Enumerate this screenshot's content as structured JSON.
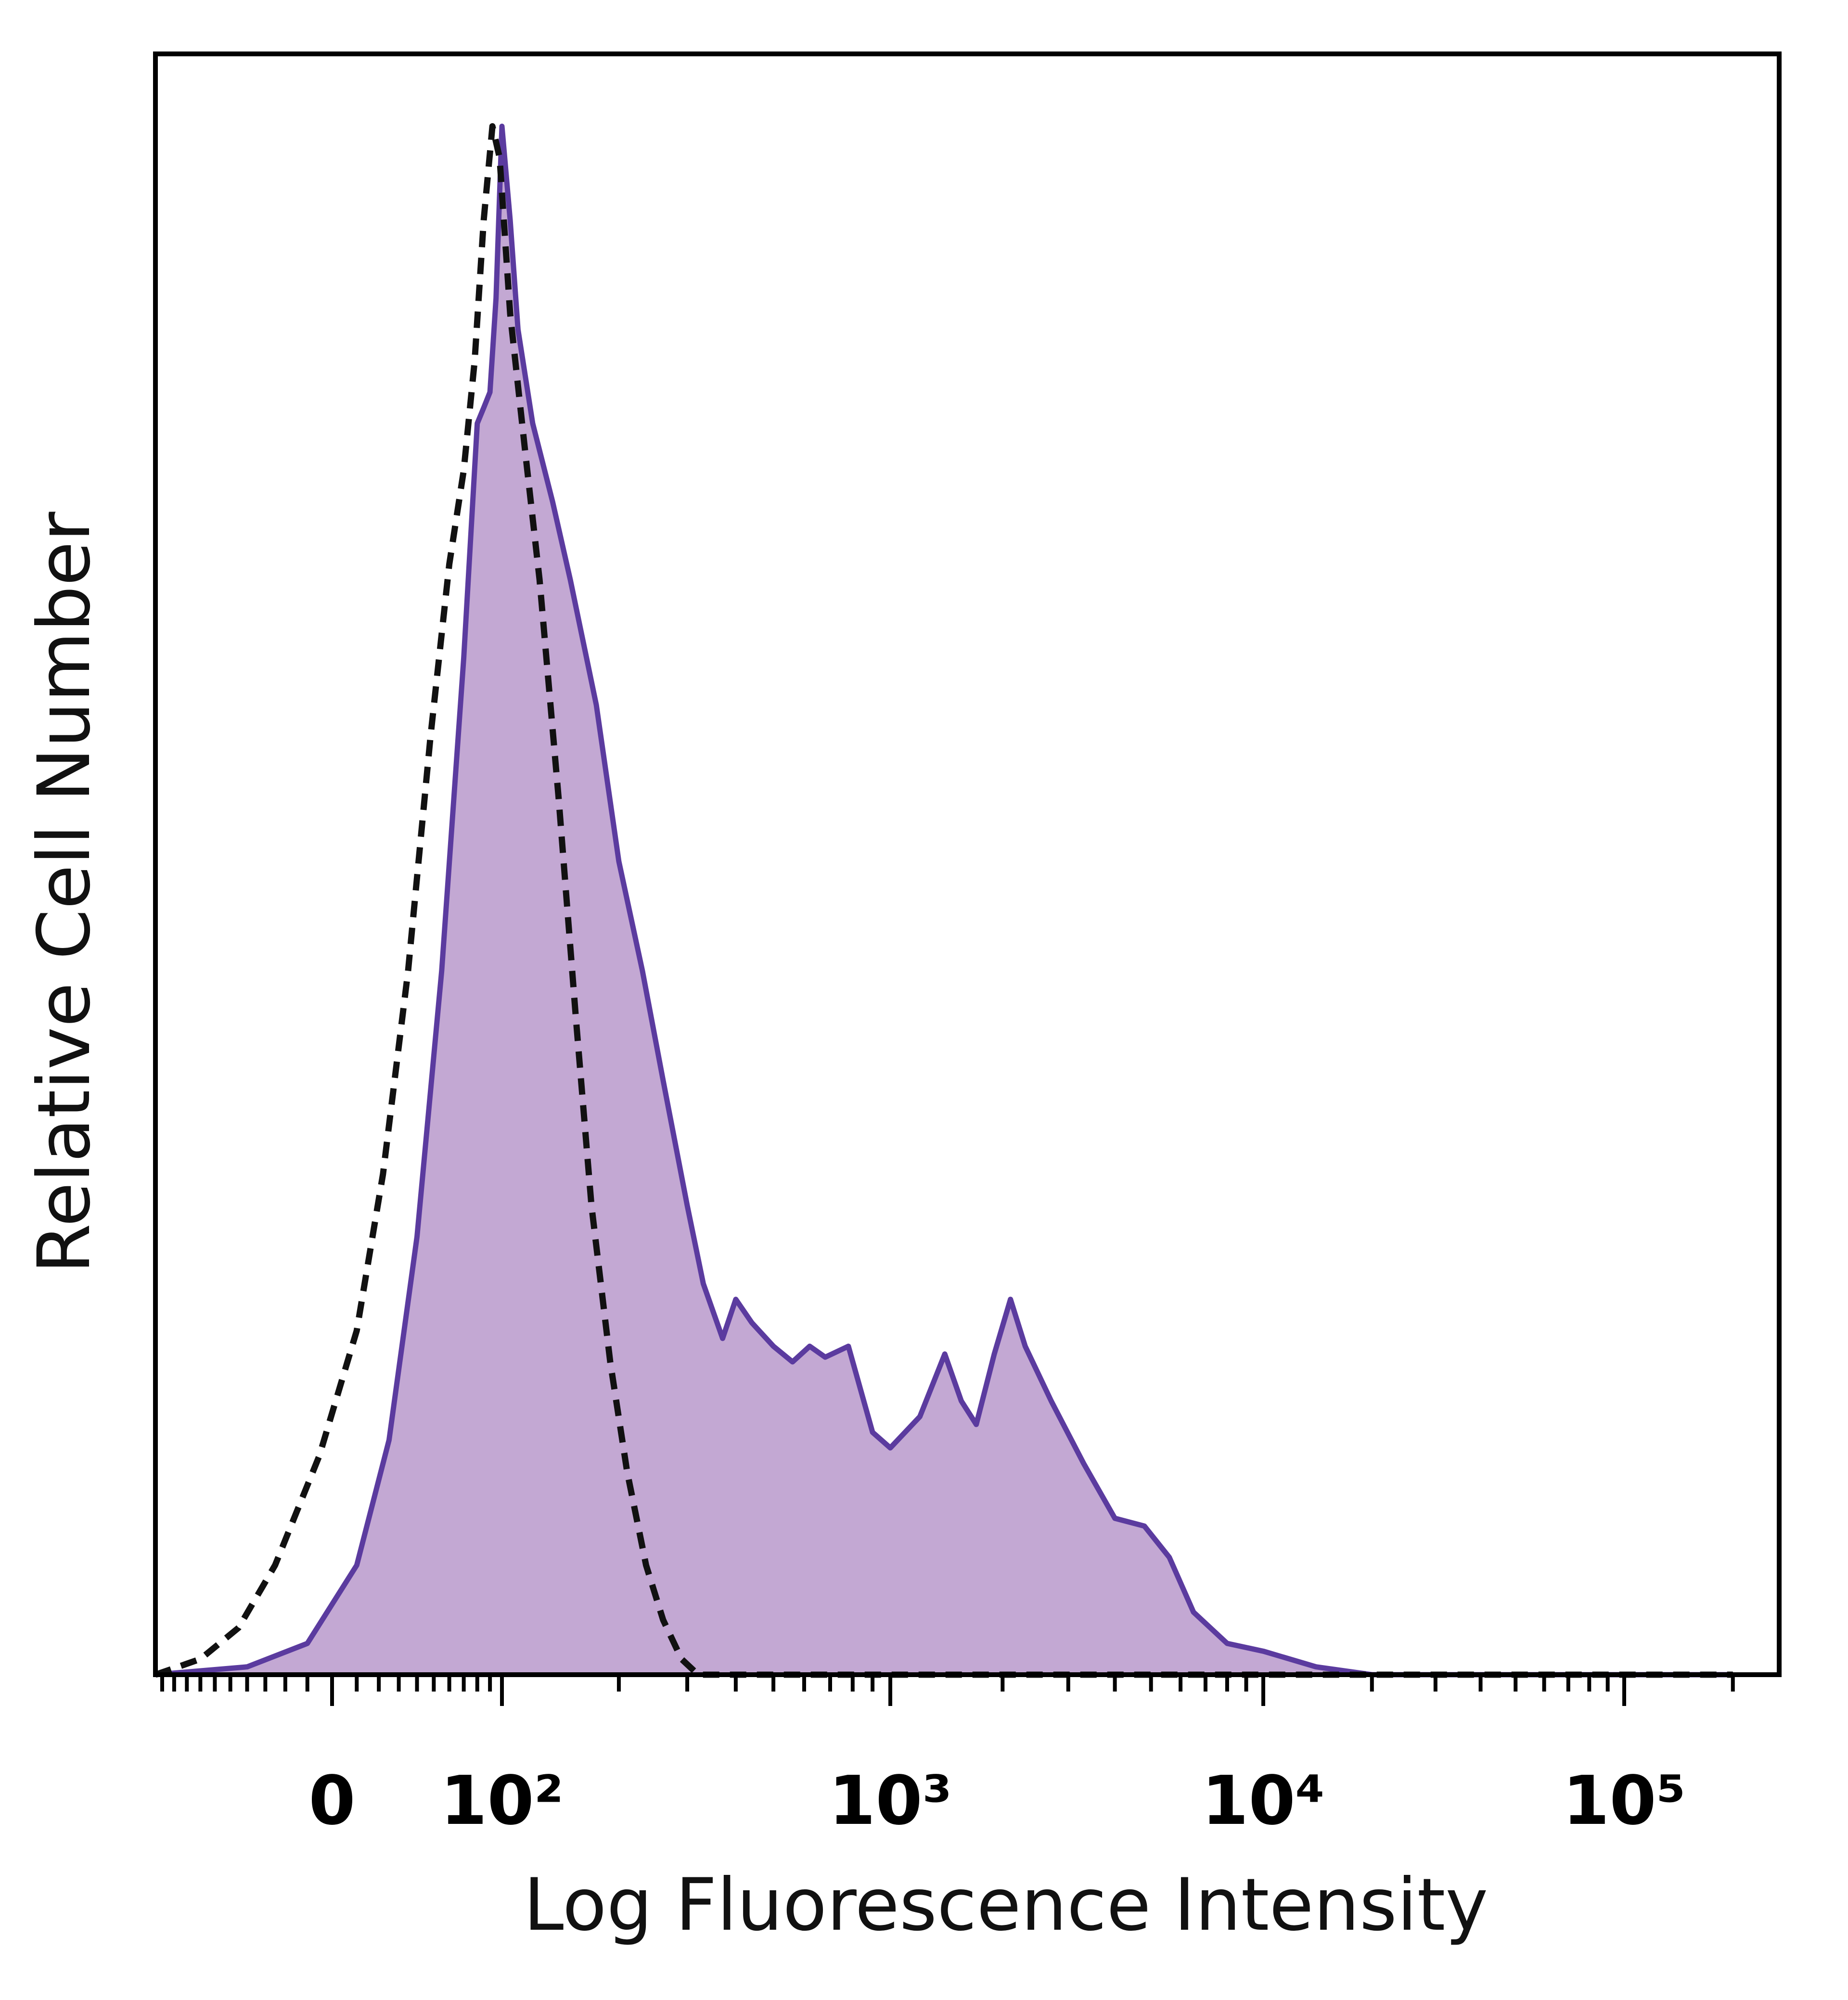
{
  "chart_data": {
    "type": "area",
    "xlabel": "Log Fluorescence Intensity",
    "ylabel": "Relative Cell Number",
    "x_scale": "biexponential",
    "x_ticks": [
      {
        "value": 0,
        "label": "0"
      },
      {
        "value": 100,
        "label": "10²"
      },
      {
        "value": 1000,
        "label": "10³"
      },
      {
        "value": 10000,
        "label": "10⁴"
      },
      {
        "value": 100000,
        "label": "10⁵"
      }
    ],
    "ylim": [
      0,
      1
    ],
    "grid": false,
    "legend": "none",
    "series": [
      {
        "style": "filled",
        "fill_color": "#c3a8d3",
        "line_color": "#5b3b9f",
        "points": [
          [
            -110,
            0
          ],
          [
            -40,
            0.005
          ],
          [
            -10,
            0.02
          ],
          [
            10,
            0.07
          ],
          [
            25,
            0.15
          ],
          [
            40,
            0.28
          ],
          [
            55,
            0.45
          ],
          [
            70,
            0.65
          ],
          [
            80,
            0.8
          ],
          [
            85,
            0.81
          ],
          [
            90,
            0.82
          ],
          [
            95,
            0.88
          ],
          [
            100,
            0.99
          ],
          [
            105,
            0.93
          ],
          [
            110,
            0.86
          ],
          [
            120,
            0.8
          ],
          [
            135,
            0.75
          ],
          [
            150,
            0.7
          ],
          [
            175,
            0.62
          ],
          [
            200,
            0.52
          ],
          [
            230,
            0.45
          ],
          [
            260,
            0.38
          ],
          [
            300,
            0.3
          ],
          [
            330,
            0.25
          ],
          [
            370,
            0.215
          ],
          [
            400,
            0.24
          ],
          [
            440,
            0.225
          ],
          [
            500,
            0.21
          ],
          [
            560,
            0.2
          ],
          [
            620,
            0.21
          ],
          [
            680,
            0.203
          ],
          [
            780,
            0.21
          ],
          [
            900,
            0.155
          ],
          [
            1000,
            0.145
          ],
          [
            1200,
            0.165
          ],
          [
            1400,
            0.205
          ],
          [
            1550,
            0.175
          ],
          [
            1700,
            0.16
          ],
          [
            1900,
            0.205
          ],
          [
            2100,
            0.24
          ],
          [
            2300,
            0.21
          ],
          [
            2700,
            0.175
          ],
          [
            3300,
            0.135
          ],
          [
            4000,
            0.1
          ],
          [
            4800,
            0.095
          ],
          [
            5600,
            0.075
          ],
          [
            6500,
            0.04
          ],
          [
            8000,
            0.02
          ],
          [
            10000,
            0.015
          ],
          [
            14000,
            0.005
          ],
          [
            20000,
            0
          ],
          [
            200000,
            0
          ]
        ]
      },
      {
        "style": "dashed",
        "line_color": "#111111",
        "points": [
          [
            -110,
            0
          ],
          [
            -70,
            0.01
          ],
          [
            -45,
            0.03
          ],
          [
            -25,
            0.07
          ],
          [
            -5,
            0.14
          ],
          [
            10,
            0.22
          ],
          [
            22,
            0.32
          ],
          [
            35,
            0.45
          ],
          [
            48,
            0.6
          ],
          [
            60,
            0.71
          ],
          [
            70,
            0.77
          ],
          [
            78,
            0.84
          ],
          [
            85,
            0.93
          ],
          [
            92,
            0.99
          ],
          [
            98,
            0.97
          ],
          [
            105,
            0.87
          ],
          [
            115,
            0.78
          ],
          [
            125,
            0.7
          ],
          [
            140,
            0.56
          ],
          [
            155,
            0.42
          ],
          [
            170,
            0.3
          ],
          [
            190,
            0.2
          ],
          [
            210,
            0.13
          ],
          [
            235,
            0.07
          ],
          [
            260,
            0.035
          ],
          [
            290,
            0.01
          ],
          [
            320,
            0
          ],
          [
            200000,
            0
          ]
        ]
      }
    ]
  }
}
